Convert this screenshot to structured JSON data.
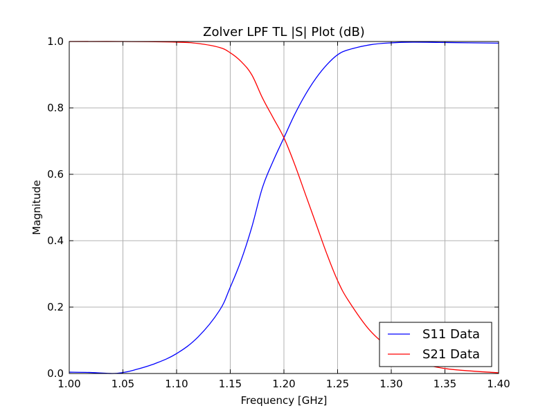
{
  "chart_data": {
    "type": "line",
    "title": "Zolver LPF TL |S| Plot (dB)",
    "xlabel": "Frequency [GHz]",
    "ylabel": "Magnitude",
    "xlim": [
      1.0,
      1.4
    ],
    "ylim": [
      0.0,
      1.0
    ],
    "x_ticks": [
      1.0,
      1.05,
      1.1,
      1.15,
      1.2,
      1.25,
      1.3,
      1.35,
      1.4
    ],
    "x_tick_labels": [
      "1.00",
      "1.05",
      "1.10",
      "1.15",
      "1.20",
      "1.25",
      "1.30",
      "1.35",
      "1.40"
    ],
    "y_ticks": [
      0.0,
      0.2,
      0.4,
      0.6,
      0.8,
      1.0
    ],
    "y_tick_labels": [
      "0.0",
      "0.2",
      "0.4",
      "0.6",
      "0.8",
      "1.0"
    ],
    "grid": true,
    "legend_position": "bottom-right",
    "series": [
      {
        "name": "S11 Data",
        "color": "#0000ff",
        "x": [
          1.0,
          1.02,
          1.04,
          1.05,
          1.06,
          1.08,
          1.1,
          1.12,
          1.14,
          1.15,
          1.16,
          1.17,
          1.18,
          1.19,
          1.2,
          1.21,
          1.22,
          1.23,
          1.24,
          1.25,
          1.26,
          1.28,
          1.3,
          1.32,
          1.35,
          1.4
        ],
        "y": [
          0.004,
          0.003,
          0.0,
          0.003,
          0.01,
          0.03,
          0.06,
          0.11,
          0.19,
          0.26,
          0.34,
          0.44,
          0.56,
          0.64,
          0.71,
          0.78,
          0.84,
          0.89,
          0.93,
          0.96,
          0.975,
          0.99,
          0.996,
          0.998,
          0.997,
          0.995
        ]
      },
      {
        "name": "S21 Data",
        "color": "#ff0000",
        "x": [
          1.0,
          1.05,
          1.1,
          1.12,
          1.14,
          1.15,
          1.16,
          1.17,
          1.18,
          1.19,
          1.2,
          1.21,
          1.22,
          1.23,
          1.24,
          1.25,
          1.26,
          1.28,
          1.3,
          1.32,
          1.35,
          1.4
        ],
        "y": [
          1.0,
          1.0,
          0.998,
          0.994,
          0.982,
          0.966,
          0.94,
          0.9,
          0.83,
          0.77,
          0.71,
          0.63,
          0.54,
          0.45,
          0.36,
          0.28,
          0.22,
          0.13,
          0.075,
          0.04,
          0.015,
          0.002
        ]
      }
    ]
  }
}
